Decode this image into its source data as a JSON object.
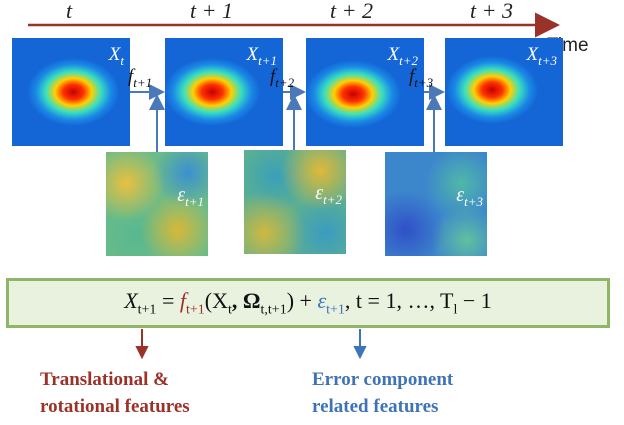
{
  "timeline": {
    "labels": [
      "t",
      "t + 1",
      "t + 2",
      "t + 3"
    ],
    "axis_label": "Time"
  },
  "frames": [
    {
      "name": "X",
      "sub": "t"
    },
    {
      "name": "X",
      "sub": "t+1"
    },
    {
      "name": "X",
      "sub": "t+2"
    },
    {
      "name": "X",
      "sub": "t+3"
    }
  ],
  "transitions": [
    {
      "name": "f",
      "sub": "t+1"
    },
    {
      "name": "f",
      "sub": "t+2"
    },
    {
      "name": "f",
      "sub": "t+3"
    }
  ],
  "errors": [
    {
      "name": "ε",
      "sub": "t+1"
    },
    {
      "name": "ε",
      "sub": "t+2"
    },
    {
      "name": "ε",
      "sub": "t+3"
    }
  ],
  "equation": {
    "lhs": "X",
    "lhs_sub": "t+1",
    "eq": " = ",
    "f": "f",
    "f_sub": "t+1",
    "args_open": "(X",
    "args_x_sub": "t",
    "args_mid": ", Ω",
    "args_omega_sub": "t,t+1",
    "args_close": ")",
    "plus": " + ",
    "eps": "ε",
    "eps_sub": "t+1",
    "tail": ", t = 1, …, T",
    "tail_sub": "l",
    "tail_end": " − 1"
  },
  "captions": {
    "left_line1": "Translational &",
    "left_line2": "rotational features",
    "right_line1": "Error component",
    "right_line2": "related features"
  },
  "colors": {
    "red": "#9b3228",
    "blue": "#3f73b8",
    "box_border": "#8fb566",
    "box_fill": "#e9f1df"
  }
}
